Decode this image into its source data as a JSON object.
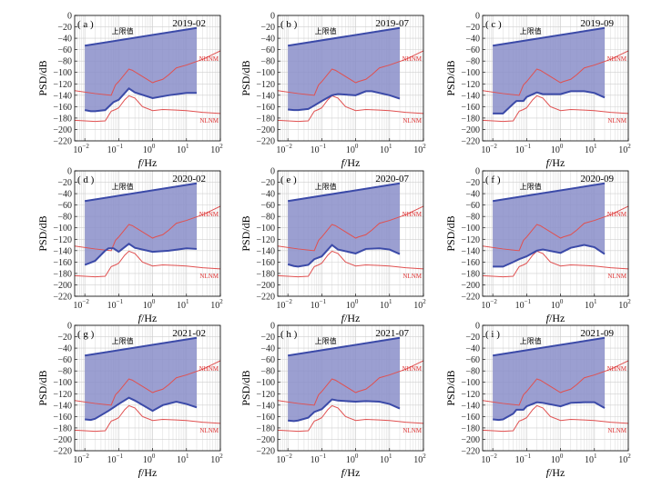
{
  "chart_data": {
    "type": "line",
    "xscale": "log",
    "xlim_exp": [
      -2.3,
      2
    ],
    "ylim": [
      -220,
      0
    ],
    "yticks": [
      0,
      -20,
      -40,
      -60,
      -80,
      -100,
      -120,
      -140,
      -160,
      -180,
      -200,
      -220
    ],
    "xtick_exps": [
      -2,
      -1,
      0,
      1,
      2
    ],
    "xtick_labels": [
      {
        "base": "10",
        "exp": "−2"
      },
      {
        "base": "10",
        "exp": "−1"
      },
      {
        "base": "10",
        "exp": "0"
      },
      {
        "base": "10",
        "exp": "1"
      },
      {
        "base": "10",
        "exp": "2"
      }
    ],
    "xlabel_italic": "f",
    "xlabel_rest": "/Hz",
    "ylabel": "PSD/dB",
    "upper_label": "上限值",
    "nhnm_label": "NHNM",
    "nlnm_label": "NLNM",
    "colors": {
      "band_fill": "#8a8ec9",
      "bound_line": "#3b4aa8",
      "noise_model": "#e05050",
      "grid": "#cfcfcf"
    },
    "nhnm": {
      "name": "NHNM",
      "x": [
        0.005,
        0.02,
        0.06,
        0.08,
        0.1,
        0.2,
        0.22,
        0.25,
        1.0,
        1.2,
        2.0,
        3.0,
        5.0,
        10,
        30,
        100
      ],
      "y": [
        -132,
        -137,
        -140,
        -122,
        -116,
        -94,
        -95,
        -96,
        -118,
        -116,
        -112,
        -104,
        -92,
        -87,
        -77,
        -62
      ]
    },
    "nlnm": {
      "name": "NLNM",
      "x": [
        0.005,
        0.02,
        0.04,
        0.06,
        0.08,
        0.1,
        0.15,
        0.2,
        0.3,
        0.5,
        1.0,
        2.0,
        5.0,
        10,
        30,
        100
      ],
      "y": [
        -184,
        -186,
        -185,
        -168,
        -165,
        -162,
        -148,
        -141,
        -145,
        -160,
        -167,
        -165,
        -166,
        -167,
        -170,
        -172
      ]
    },
    "upper_bound_x": [
      0.01,
      20
    ],
    "upper_bound_y": [
      -53,
      -22
    ],
    "panels": [
      {
        "label": "( a )",
        "title": "2019-02",
        "lower": {
          "x": [
            0.01,
            0.015,
            0.02,
            0.04,
            0.07,
            0.1,
            0.2,
            0.3,
            1.0,
            3.0,
            10,
            20
          ],
          "y": [
            -166,
            -168,
            -168,
            -166,
            -152,
            -148,
            -128,
            -135,
            -145,
            -140,
            -136,
            -136
          ]
        }
      },
      {
        "label": "( b )",
        "title": "2019-07",
        "lower": {
          "x": [
            0.01,
            0.015,
            0.02,
            0.04,
            0.06,
            0.1,
            0.2,
            0.3,
            1.0,
            2.0,
            3.0,
            10,
            20
          ],
          "y": [
            -165,
            -166,
            -166,
            -164,
            -158,
            -150,
            -140,
            -138,
            -140,
            -133,
            -133,
            -140,
            -146
          ]
        }
      },
      {
        "label": "( c )",
        "title": "2019-09",
        "lower": {
          "x": [
            0.01,
            0.02,
            0.04,
            0.05,
            0.08,
            0.1,
            0.2,
            0.3,
            1.0,
            2.0,
            5.0,
            10,
            20
          ],
          "y": [
            -172,
            -172,
            -155,
            -150,
            -150,
            -143,
            -135,
            -138,
            -138,
            -133,
            -133,
            -136,
            -144
          ]
        }
      },
      {
        "label": "( d )",
        "title": "2020-02",
        "lower": {
          "x": [
            0.01,
            0.02,
            0.04,
            0.05,
            0.07,
            0.1,
            0.2,
            0.3,
            1.0,
            3.0,
            10,
            20
          ],
          "y": [
            -165,
            -158,
            -140,
            -136,
            -136,
            -142,
            -128,
            -135,
            -142,
            -140,
            -136,
            -137
          ]
        }
      },
      {
        "label": "( e )",
        "title": "2020-07",
        "lower": {
          "x": [
            0.01,
            0.015,
            0.02,
            0.04,
            0.06,
            0.1,
            0.2,
            0.3,
            1.0,
            2.0,
            5.0,
            10,
            20
          ],
          "y": [
            -164,
            -167,
            -168,
            -165,
            -155,
            -150,
            -130,
            -138,
            -145,
            -137,
            -136,
            -138,
            -146
          ]
        }
      },
      {
        "label": "( f )",
        "title": "2020-09",
        "lower": {
          "x": [
            0.01,
            0.02,
            0.04,
            0.06,
            0.1,
            0.2,
            0.3,
            1.0,
            2.0,
            5.0,
            10,
            20
          ],
          "y": [
            -168,
            -168,
            -160,
            -155,
            -150,
            -140,
            -138,
            -144,
            -135,
            -130,
            -134,
            -146
          ]
        }
      },
      {
        "label": "( g )",
        "title": "2021-02",
        "lower": {
          "x": [
            0.01,
            0.015,
            0.02,
            0.05,
            0.1,
            0.2,
            0.3,
            1.0,
            2.0,
            5.0,
            10,
            20
          ],
          "y": [
            -165,
            -166,
            -164,
            -150,
            -138,
            -127,
            -132,
            -150,
            -140,
            -134,
            -138,
            -144
          ]
        }
      },
      {
        "label": "( h )",
        "title": "2021-07",
        "lower": {
          "x": [
            0.01,
            0.015,
            0.02,
            0.04,
            0.06,
            0.1,
            0.2,
            0.3,
            1.0,
            2.0,
            5.0,
            10,
            20
          ],
          "y": [
            -167,
            -168,
            -167,
            -162,
            -152,
            -147,
            -130,
            -132,
            -134,
            -133,
            -134,
            -138,
            -146
          ]
        }
      },
      {
        "label": "( i )",
        "title": "2021-09",
        "lower": {
          "x": [
            0.01,
            0.015,
            0.02,
            0.04,
            0.05,
            0.08,
            0.1,
            0.2,
            0.3,
            1.0,
            2.0,
            5.0,
            10,
            20
          ],
          "y": [
            -165,
            -166,
            -165,
            -155,
            -148,
            -148,
            -142,
            -135,
            -136,
            -142,
            -136,
            -135,
            -135,
            -145
          ]
        }
      }
    ]
  }
}
